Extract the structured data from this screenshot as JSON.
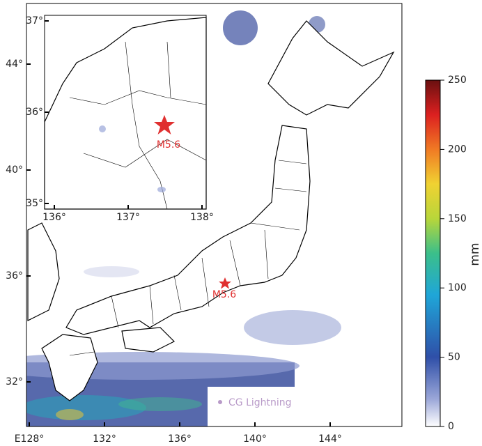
{
  "map": {
    "lon_ticks": [
      {
        "value": 128,
        "label": "E128°"
      },
      {
        "value": 132,
        "label": "132°"
      },
      {
        "value": 136,
        "label": "136°"
      },
      {
        "value": 140,
        "label": "140°"
      },
      {
        "value": 144,
        "label": "144°"
      }
    ],
    "lat_ticks": [
      {
        "value": 32,
        "label": "32°"
      },
      {
        "value": 36,
        "label": "36°"
      },
      {
        "value": 40,
        "label": "40°"
      },
      {
        "value": 44,
        "label": "44°"
      }
    ],
    "epicenter_label": "M5.6",
    "legend_label": "CG Lightning"
  },
  "inset": {
    "lon_ticks": [
      {
        "value": 136,
        "label": "136°"
      },
      {
        "value": 137,
        "label": "137°"
      },
      {
        "value": 138,
        "label": "138°"
      }
    ],
    "lat_ticks": [
      {
        "value": 35,
        "label": "35°"
      },
      {
        "value": 36,
        "label": "36°"
      },
      {
        "value": 37,
        "label": "37°"
      }
    ],
    "epicenter_label": "M5.6"
  },
  "colorbar": {
    "label": "mm",
    "lim": [
      0,
      250
    ],
    "ticks": [
      0,
      50,
      100,
      150,
      200,
      250
    ]
  }
}
